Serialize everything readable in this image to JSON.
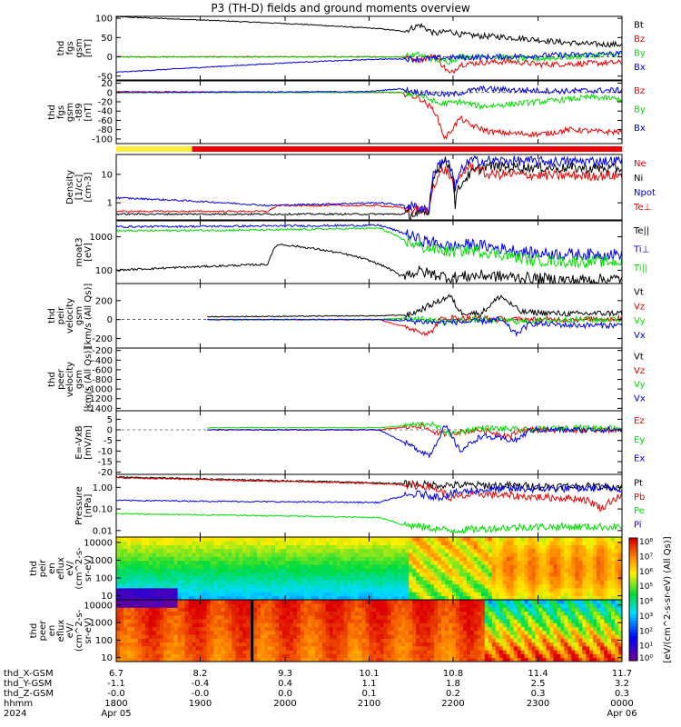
{
  "title": "P3 (TH-D) fields and ground moments overview",
  "colors": {
    "black": "#000000",
    "red": "#ee0000",
    "green": "#00dd00",
    "blue": "#0000ee",
    "yellow": "#ffee33",
    "bar_red": "#ee0000"
  },
  "chart_data": [
    {
      "type": "line",
      "id": "fgs_gsm",
      "ylabel": [
        "thd",
        "fgs",
        "gsm",
        "[nT]"
      ],
      "yticks": [
        "100",
        "50",
        "0",
        "-50"
      ],
      "ylim": [
        -60,
        105
      ],
      "series": [
        {
          "name": "Bt",
          "color": "black",
          "x": [
            6.7,
            7.5,
            8.5,
            9.3,
            9.55,
            9.7,
            9.85,
            10.0,
            10.1,
            10.3,
            10.5,
            10.8,
            11.1,
            11.4,
            11.7
          ],
          "y": [
            104,
            96,
            85,
            73,
            66,
            83,
            60,
            67,
            58,
            54,
            52,
            46,
            38,
            33,
            32
          ]
        },
        {
          "name": "Bz",
          "color": "red",
          "x": [
            6.7,
            9.5,
            9.7,
            9.85,
            10.0,
            10.1,
            10.3,
            10.6,
            10.9,
            11.2,
            11.7
          ],
          "y": [
            0,
            0,
            -8,
            3,
            -45,
            -20,
            -15,
            -12,
            -20,
            -18,
            -15
          ]
        },
        {
          "name": "By",
          "color": "green",
          "x": [
            6.7,
            9.5,
            9.7,
            9.85,
            10.0,
            10.1,
            10.4,
            10.8,
            11.2,
            11.7
          ],
          "y": [
            0,
            0,
            6,
            -8,
            -12,
            0,
            0,
            -6,
            0,
            8
          ]
        },
        {
          "name": "Bx",
          "color": "blue",
          "x": [
            6.7,
            7.5,
            8.5,
            9.3,
            9.7,
            10.0,
            10.5,
            11.0,
            11.7
          ],
          "y": [
            -40,
            -28,
            -14,
            -6,
            -5,
            -2,
            0,
            4,
            8
          ]
        }
      ]
    },
    {
      "type": "line",
      "id": "fgs_gsm_t89",
      "ylabel": [
        "thd",
        "fgs",
        "gsm",
        "-t89",
        "[nT]"
      ],
      "yticks": [
        "20",
        "0",
        "-20",
        "-40",
        "-60",
        "-80",
        "-100"
      ],
      "ylim": [
        -110,
        25
      ],
      "series": [
        {
          "name": "Bz",
          "color": "red",
          "x": [
            6.7,
            9.5,
            9.7,
            9.85,
            9.95,
            10.1,
            10.2,
            10.4,
            10.6,
            10.9,
            11.2,
            11.5,
            11.7
          ],
          "y": [
            2,
            0,
            -12,
            -40,
            -100,
            -55,
            -70,
            -85,
            -88,
            -90,
            -80,
            -85,
            -85
          ]
        },
        {
          "name": "By",
          "color": "green",
          "x": [
            6.7,
            9.5,
            9.7,
            9.9,
            10.1,
            10.3,
            10.6,
            11.0,
            11.4,
            11.7
          ],
          "y": [
            0,
            0,
            -5,
            -25,
            -20,
            -30,
            -25,
            -18,
            -10,
            -15
          ]
        },
        {
          "name": "Bx",
          "color": "blue",
          "x": [
            6.7,
            9.2,
            9.5,
            9.7,
            10.0,
            10.3,
            10.7,
            11.1,
            11.7
          ],
          "y": [
            0,
            2,
            8,
            0,
            -5,
            8,
            5,
            3,
            5
          ]
        }
      ]
    },
    {
      "type": "line",
      "id": "density",
      "ylabel": [
        "Density",
        "[1/cc]",
        "[cm-3]"
      ],
      "yticks": [
        "10",
        "1"
      ],
      "log": true,
      "ylim": [
        0.25,
        50
      ],
      "series": [
        {
          "name": "Ne",
          "color": "red",
          "x": [
            6.7,
            8.2,
            8.3,
            9.3,
            9.8,
            9.95,
            10.05,
            10.2,
            10.35,
            10.6,
            11.0,
            11.7
          ],
          "y": [
            0.5,
            0.5,
            0.8,
            0.8,
            0.5,
            15,
            2,
            20,
            10,
            10,
            9,
            9
          ]
        },
        {
          "name": "Ni",
          "color": "black",
          "x": [
            6.7,
            8.2,
            9.3,
            9.8,
            9.95,
            10.05,
            10.2,
            10.35,
            10.6,
            11.0,
            11.7
          ],
          "y": [
            0.4,
            0.4,
            0.4,
            0.4,
            30,
            0.8,
            10,
            20,
            18,
            17,
            16
          ]
        },
        {
          "name": "Npot",
          "color": "blue",
          "x": [
            6.7,
            8.2,
            9.3,
            9.8,
            9.95,
            10.05,
            10.2,
            10.35,
            10.6,
            11.0,
            11.7
          ],
          "y": [
            1.5,
            0.8,
            1.0,
            0.6,
            35,
            2,
            30,
            30,
            30,
            28,
            30
          ]
        },
        {
          "name": "Te⊥",
          "color": "red",
          "x": [],
          "y": []
        }
      ]
    },
    {
      "type": "line",
      "id": "temperature",
      "ylabel": [
        "moat3",
        "[eV]"
      ],
      "yticks": [
        "1000",
        "100"
      ],
      "log": true,
      "ylim": [
        40,
        3000
      ],
      "series": [
        {
          "name": "Te||",
          "color": "black",
          "x": [
            6.7,
            8.2,
            8.3,
            9.3,
            9.5,
            9.7,
            10.0,
            10.3,
            10.7,
            11.2,
            11.7
          ],
          "y": [
            100,
            150,
            600,
            150,
            70,
            90,
            60,
            70,
            60,
            50,
            55
          ]
        },
        {
          "name": "Ti⊥",
          "color": "blue",
          "x": [
            6.7,
            8.2,
            9.3,
            9.5,
            9.7,
            10.0,
            10.2,
            10.5,
            10.8,
            11.2,
            11.7
          ],
          "y": [
            2000,
            2100,
            2200,
            1400,
            800,
            500,
            600,
            450,
            330,
            300,
            300
          ]
        },
        {
          "name": "Ti||",
          "color": "green",
          "x": [
            6.7,
            8.2,
            9.3,
            9.5,
            9.7,
            10.0,
            10.2,
            10.5,
            10.8,
            11.2,
            11.7
          ],
          "y": [
            1500,
            1600,
            1800,
            900,
            500,
            350,
            400,
            300,
            200,
            180,
            180
          ]
        }
      ]
    },
    {
      "type": "line",
      "id": "peir_velocity",
      "ylabel": [
        "thd",
        "peir",
        "velocity",
        "gsm",
        "[km/s (All Qs)]"
      ],
      "yticks": [
        "200",
        "0",
        "-200"
      ],
      "ylim": [
        -300,
        380
      ],
      "series": [
        {
          "name": "Vt",
          "color": "black",
          "x": [
            7.6,
            9.3,
            9.6,
            9.9,
            10.0,
            10.1,
            10.3,
            10.5,
            10.7,
            11.2,
            11.7
          ],
          "y": [
            30,
            40,
            50,
            200,
            250,
            80,
            60,
            250,
            80,
            60,
            70
          ]
        },
        {
          "name": "Vz",
          "color": "red",
          "x": [
            7.6,
            9.3,
            9.8,
            9.9,
            10.0,
            10.3,
            10.7,
            11.2,
            11.7
          ],
          "y": [
            0,
            0,
            -150,
            0,
            20,
            10,
            0,
            0,
            10
          ]
        },
        {
          "name": "Vy",
          "color": "green",
          "x": [
            7.6,
            9.3,
            9.6,
            9.9,
            10.3,
            10.7,
            11.2,
            11.7
          ],
          "y": [
            0,
            0,
            20,
            -20,
            0,
            -20,
            0,
            0
          ]
        },
        {
          "name": "Vx",
          "color": "blue",
          "x": [
            7.6,
            9.3,
            9.9,
            10.3,
            10.5,
            10.65,
            10.8,
            11.2,
            11.7
          ],
          "y": [
            0,
            0,
            -30,
            -20,
            0,
            -150,
            -40,
            -60,
            -60
          ]
        }
      ]
    },
    {
      "type": "line",
      "id": "peer_velocity",
      "ylabel": [
        "thd",
        "peer",
        "velocity",
        "gsm",
        "[km/s (All Qs)]"
      ],
      "yticks": [
        "-200",
        "-400",
        "-600",
        "-800",
        "-1000",
        "-1200",
        "-1400"
      ],
      "ylim": [
        -1450,
        -150
      ],
      "series": [
        {
          "name": "Vt",
          "color": "black",
          "x": [],
          "y": []
        },
        {
          "name": "Vz",
          "color": "red",
          "x": [],
          "y": []
        },
        {
          "name": "Vy",
          "color": "green",
          "x": [],
          "y": []
        },
        {
          "name": "Vx",
          "color": "blue",
          "x": [],
          "y": []
        }
      ]
    },
    {
      "type": "line",
      "id": "efield",
      "ylabel": [
        "E=-VxB",
        "[mV/m]"
      ],
      "yticks": [
        "5",
        "0",
        "-5",
        "-10",
        "-15",
        "-20"
      ],
      "ylim": [
        -21,
        9
      ],
      "series": [
        {
          "name": "Ez",
          "color": "red",
          "x": [
            7.6,
            9.3,
            9.7,
            9.9,
            10.3,
            10.6,
            10.7,
            11.2,
            11.7
          ],
          "y": [
            0,
            0,
            2,
            -2,
            0,
            -3,
            0,
            0,
            0
          ]
        },
        {
          "name": "Ey",
          "color": "green",
          "x": [
            7.6,
            9.3,
            9.8,
            10.0,
            10.3,
            10.7,
            11.2,
            11.7
          ],
          "y": [
            1,
            1,
            3,
            -2,
            1,
            0,
            1,
            1
          ]
        },
        {
          "name": "Ex",
          "color": "blue",
          "x": [
            7.6,
            9.3,
            9.8,
            9.95,
            10.1,
            10.3,
            10.65,
            10.8,
            11.2,
            11.7
          ],
          "y": [
            0,
            0,
            -12,
            2,
            -10,
            -3,
            -5,
            0,
            0,
            0
          ]
        }
      ]
    },
    {
      "type": "line",
      "id": "pressure",
      "ylabel": [
        "Pressure",
        "[nPa]"
      ],
      "yticks": [
        "1.00",
        "0.10",
        "0.01"
      ],
      "log": true,
      "ylim": [
        0.005,
        4
      ],
      "series": [
        {
          "name": "Pt",
          "color": "black",
          "x": [
            6.7,
            8.0,
            9.3,
            9.8,
            10.3,
            10.8,
            11.3,
            11.7
          ],
          "y": [
            3.0,
            2.2,
            1.6,
            1.3,
            1.25,
            1.15,
            1.1,
            1.1
          ]
        },
        {
          "name": "Pb",
          "color": "red",
          "x": [
            6.7,
            8.0,
            9.3,
            9.8,
            10.0,
            10.3,
            10.6,
            10.9,
            11.3,
            11.5,
            11.7
          ],
          "y": [
            2.8,
            2.0,
            1.5,
            1.1,
            0.3,
            0.5,
            0.4,
            0.35,
            0.3,
            0.1,
            0.4
          ]
        },
        {
          "name": "Pe",
          "color": "green",
          "x": [
            6.7,
            8.0,
            9.3,
            9.5,
            9.7,
            10.0,
            10.3,
            10.8,
            11.3,
            11.7
          ],
          "y": [
            0.06,
            0.05,
            0.04,
            0.02,
            0.015,
            0.01,
            0.012,
            0.015,
            0.015,
            0.015
          ]
        },
        {
          "name": "Pi",
          "color": "blue",
          "x": [
            6.7,
            8.0,
            9.3,
            9.7,
            9.9,
            10.1,
            10.4,
            10.8,
            11.3,
            11.7
          ],
          "y": [
            0.25,
            0.22,
            0.2,
            0.5,
            0.35,
            0.6,
            0.8,
            0.85,
            0.9,
            0.9
          ]
        }
      ]
    },
    {
      "type": "heatmap",
      "id": "peir_en_eflux",
      "ylabel": [
        "thd",
        "peir",
        "en",
        "eflux",
        "eV/",
        "(cm^2-s-",
        "sr-eV)"
      ],
      "yticks": [
        "10000",
        "1000",
        "100",
        "10"
      ],
      "log": true,
      "ylim": [
        6,
        20000
      ]
    },
    {
      "type": "heatmap",
      "id": "peer_en_eflux",
      "ylabel": [
        "thd",
        "peer",
        "en",
        "eflux",
        "eV/",
        "(cm^2-s-",
        "sr-eV)"
      ],
      "yticks": [
        "10000",
        "1000",
        "100",
        "10"
      ],
      "log": true,
      "ylim": [
        6,
        20000
      ]
    }
  ],
  "colorbar": {
    "ticks": [
      "10⁸",
      "10⁷",
      "10⁶",
      "10⁵",
      "10⁴",
      "10³",
      "10²",
      "10¹",
      "10⁰"
    ],
    "label": "[eV/(cm^2-s-sr-eV) (All Qs)]"
  },
  "xaxis": {
    "xlim": [
      6.7,
      11.7
    ],
    "row_labels": [
      "thd_X-GSM",
      "thd_Y-GSM",
      "thd_Z-GSM",
      "hhmm",
      "2024"
    ],
    "columns": [
      {
        "x": 6.7,
        "vals": [
          "6.7",
          "-1.1",
          "-0.0",
          "1800",
          "Apr 05"
        ]
      },
      {
        "x": 7.53,
        "vals": [
          "8.2",
          "-0.4",
          "-0.0",
          "1900",
          ""
        ]
      },
      {
        "x": 8.37,
        "vals": [
          "9.3",
          "0.4",
          "0.0",
          "2000",
          ""
        ]
      },
      {
        "x": 9.2,
        "vals": [
          "10.1",
          "1.1",
          "0.1",
          "2100",
          ""
        ]
      },
      {
        "x": 10.03,
        "vals": [
          "10.8",
          "1.8",
          "0.2",
          "2200",
          ""
        ]
      },
      {
        "x": 10.87,
        "vals": [
          "11.4",
          "2.5",
          "0.3",
          "2300",
          ""
        ]
      },
      {
        "x": 11.7,
        "vals": [
          "11.7",
          "3.2",
          "0.3",
          "0000",
          "Apr 06"
        ]
      }
    ]
  }
}
